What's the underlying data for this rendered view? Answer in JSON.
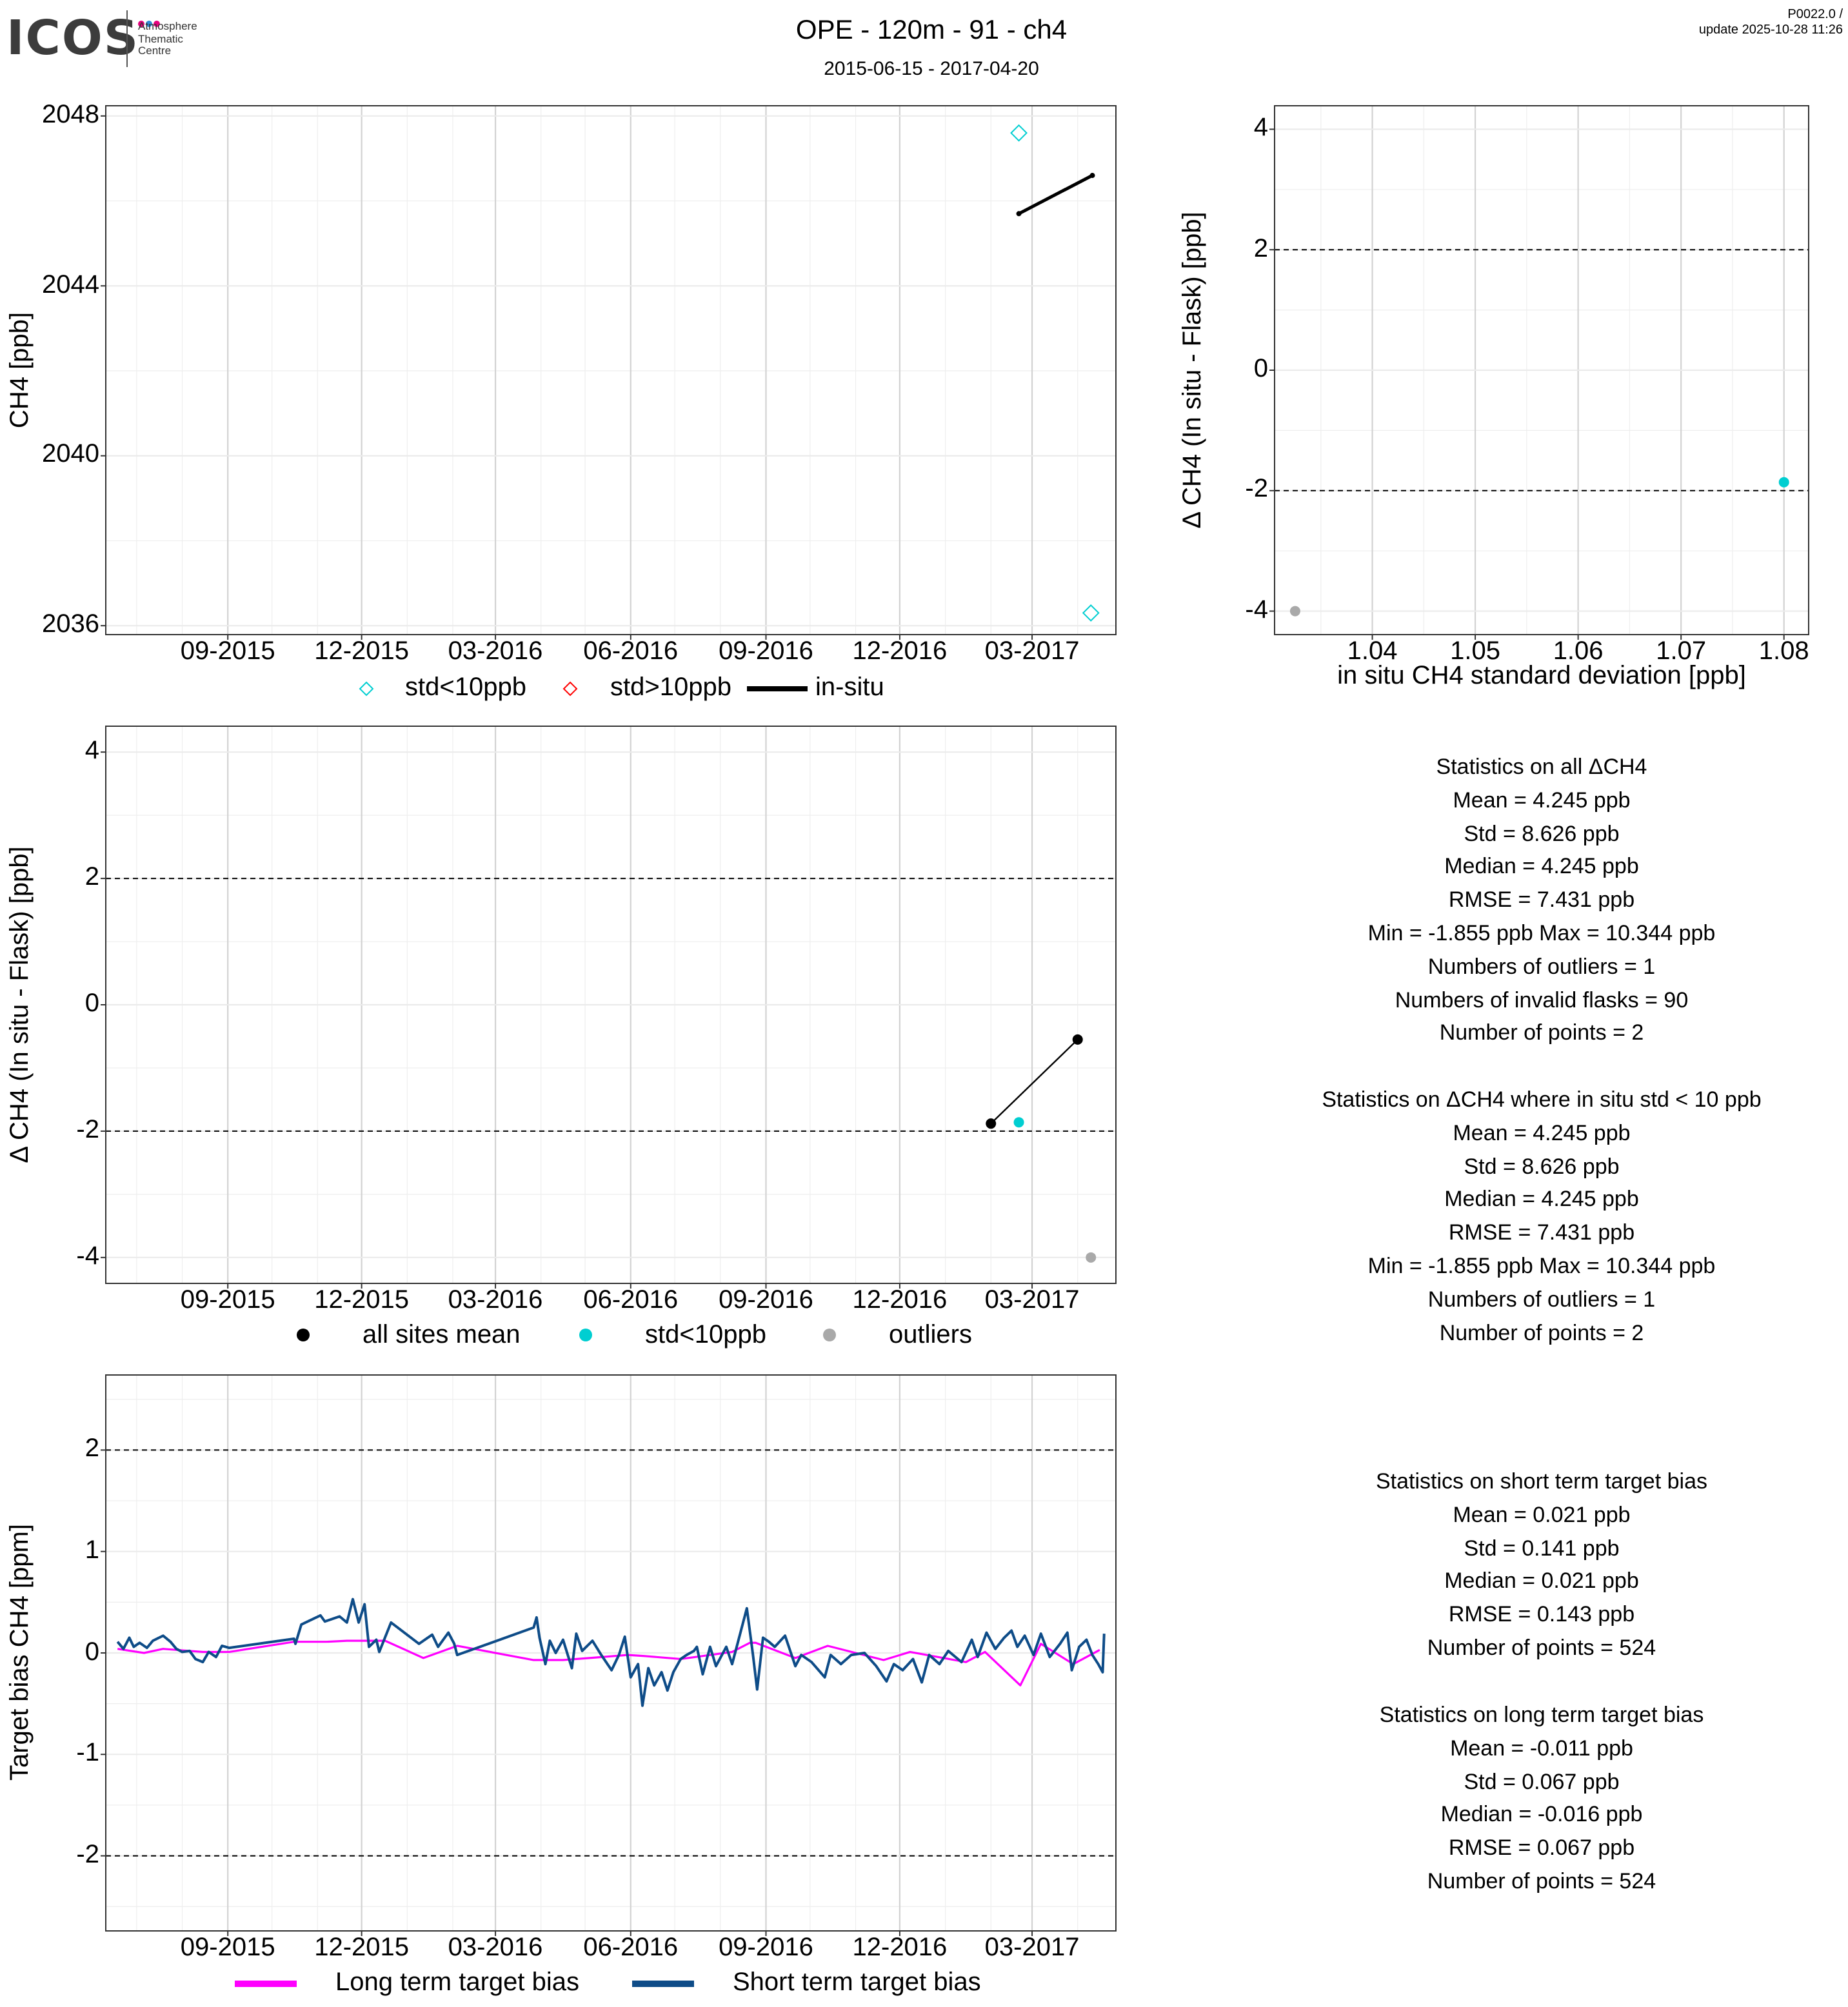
{
  "header": {
    "logo_text": "ICOS",
    "logo_sub": [
      "Atmosphere",
      "Thematic",
      "Centre"
    ],
    "title": "OPE - 120m - 91 - ch4",
    "date_range": "2015-06-15 - 2017-04-20",
    "version": "P0022.0 /",
    "update": "update  2025-10-28 11:26"
  },
  "colors": {
    "std_lt_10": "#00CED1",
    "std_gt_10": "#FF0000",
    "in_situ": "#000000",
    "outlier": "#A9A9A9",
    "long_term": "#FF00FF",
    "short_term": "#0E4C88",
    "logo_dots": [
      "#E6007E",
      "#2D8DD9",
      "#E6007E"
    ]
  },
  "legends": {
    "top": [
      "std<10ppb",
      "std>10ppb",
      "in-situ"
    ],
    "middle": [
      "all sites mean",
      "std<10ppb",
      "outliers"
    ],
    "bottom": [
      "Long term target bias",
      "Short term target bias"
    ]
  },
  "stats": [
    {
      "title": "Statistics on all ΔCH4",
      "lines": [
        "Mean =  4.245 ppb",
        "Std =  8.626 ppb",
        "Median =  4.245 ppb",
        "RMSE =  7.431 ppb",
        "Min =  -1.855 ppb Max =  10.344 ppb",
        "Numbers of outliers =  1",
        "Numbers of invalid flasks =  90",
        "Number of points =  2"
      ]
    },
    {
      "title": "Statistics on ΔCH4 where in situ std < 10 ppb",
      "lines": [
        "Mean =  4.245 ppb",
        "Std =  8.626 ppb",
        "Median =  4.245 ppb",
        "RMSE =  7.431 ppb",
        "Min =  -1.855 ppb Max =  10.344 ppb",
        "Numbers of outliers =  1",
        "Number of points =  2"
      ]
    },
    {
      "title": "Statistics on short term target bias",
      "lines": [
        "Mean =  0.021 ppb",
        "Std =  0.141 ppb",
        "Median =  0.021 ppb",
        "RMSE =  0.143 ppb",
        "Number of points =  524"
      ]
    },
    {
      "title": "Statistics on long term target bias",
      "lines": [
        "Mean =  -0.011 ppb",
        "Std =  0.067 ppb",
        "Median =  -0.016 ppb",
        "RMSE =  0.067 ppb",
        "Number of points =  524"
      ]
    }
  ],
  "chart_data": [
    {
      "id": "ch4-timeseries",
      "type": "scatter",
      "x_unit": "days since 2015-06-15",
      "ylabel": "CH4 [ppb]",
      "xlim": [
        -5,
        682
      ],
      "ylim": [
        2035.79,
        2048.24
      ],
      "xticks": [
        [
          78,
          "09-2015"
        ],
        [
          169,
          "12-2015"
        ],
        [
          260,
          "03-2016"
        ],
        [
          352,
          "06-2016"
        ],
        [
          444,
          "09-2016"
        ],
        [
          535,
          "12-2016"
        ],
        [
          625,
          "03-2017"
        ]
      ],
      "xminor": [
        16,
        47,
        108,
        139,
        200,
        231,
        291,
        321,
        382,
        413,
        474,
        505,
        566,
        597,
        656
      ],
      "yticks": [
        [
          2036,
          "2036"
        ],
        [
          2040,
          "2040"
        ],
        [
          2044,
          "2044"
        ],
        [
          2048,
          "2048"
        ]
      ],
      "yminor": [
        2038,
        2042,
        2046
      ],
      "dashed": [],
      "legend": "bottom",
      "series": [
        {
          "name": "std<10ppb",
          "kind": "diamond",
          "color": "#00CED1",
          "points": [
            [
              616,
              2047.6
            ],
            [
              665,
              2036.3
            ]
          ]
        },
        {
          "name": "std>10ppb",
          "kind": "diamond",
          "color": "#FF0000",
          "points": []
        },
        {
          "name": "in-situ",
          "kind": "line-dots",
          "color": "#000000",
          "points": [
            [
              616,
              2045.7
            ],
            [
              666,
              2046.6
            ]
          ]
        }
      ]
    },
    {
      "id": "delta-vs-std",
      "type": "scatter",
      "xlabel": "in situ CH4 standard deviation [ppb]",
      "ylabel": "Δ CH4 (In situ - Flask) [ppb]",
      "xlim": [
        1.0305,
        1.0824
      ],
      "ylim": [
        -4.39,
        4.39
      ],
      "xticks": [
        [
          1.04,
          "1.04"
        ],
        [
          1.05,
          "1.05"
        ],
        [
          1.06,
          "1.06"
        ],
        [
          1.07,
          "1.07"
        ],
        [
          1.08,
          "1.08"
        ]
      ],
      "xminor": [
        1.035,
        1.045,
        1.055,
        1.065,
        1.075
      ],
      "yticks": [
        [
          -4,
          "-4"
        ],
        [
          -2,
          "-2"
        ],
        [
          0,
          "0"
        ],
        [
          2,
          "2"
        ],
        [
          4,
          "4"
        ]
      ],
      "yminor": [
        -3,
        -1,
        1,
        3
      ],
      "dashed": [
        -2,
        2
      ],
      "series": [
        {
          "name": "std<10ppb",
          "kind": "dot",
          "color": "#00CED1",
          "points": [
            [
              1.08,
              -1.86
            ]
          ]
        },
        {
          "name": "outliers",
          "kind": "dot",
          "color": "#A9A9A9",
          "points": [
            [
              1.0325,
              -4.0
            ]
          ]
        }
      ]
    },
    {
      "id": "delta-timeseries",
      "type": "scatter",
      "x_unit": "days since 2015-06-15",
      "ylabel": "Δ CH4 (In situ - Flask) [ppb]",
      "xlim": [
        -5,
        682
      ],
      "ylim": [
        -4.41,
        4.41
      ],
      "xticks": [
        [
          78,
          "09-2015"
        ],
        [
          169,
          "12-2015"
        ],
        [
          260,
          "03-2016"
        ],
        [
          352,
          "06-2016"
        ],
        [
          444,
          "09-2016"
        ],
        [
          535,
          "12-2016"
        ],
        [
          625,
          "03-2017"
        ]
      ],
      "xminor": [
        16,
        47,
        108,
        139,
        200,
        231,
        291,
        321,
        382,
        413,
        474,
        505,
        566,
        597,
        656
      ],
      "yticks": [
        [
          -4,
          "-4"
        ],
        [
          -2,
          "-2"
        ],
        [
          0,
          "0"
        ],
        [
          2,
          "2"
        ],
        [
          4,
          "4"
        ]
      ],
      "yminor": [
        -3,
        -1,
        1,
        3
      ],
      "dashed": [
        -2,
        2
      ],
      "legend": "bottom",
      "series": [
        {
          "name": "all sites mean",
          "kind": "line-bigdots",
          "color": "#000000",
          "points": [
            [
              597,
              -1.88
            ],
            [
              656,
              -0.55
            ]
          ]
        },
        {
          "name": "std<10ppb",
          "kind": "dot",
          "color": "#00CED1",
          "points": [
            [
              616,
              -1.86
            ]
          ]
        },
        {
          "name": "outliers",
          "kind": "dot",
          "color": "#A9A9A9",
          "points": [
            [
              665,
              -4.0
            ]
          ]
        }
      ]
    },
    {
      "id": "target-bias",
      "type": "line",
      "x_unit": "days since 2015-06-15",
      "ylabel": "Target bias CH4 [ppm]",
      "xlim": [
        -5,
        682
      ],
      "ylim": [
        -2.74,
        2.74
      ],
      "xticks": [
        [
          78,
          "09-2015"
        ],
        [
          169,
          "12-2015"
        ],
        [
          260,
          "03-2016"
        ],
        [
          352,
          "06-2016"
        ],
        [
          444,
          "09-2016"
        ],
        [
          535,
          "12-2016"
        ],
        [
          625,
          "03-2017"
        ]
      ],
      "xminor": [
        16,
        47,
        108,
        139,
        200,
        231,
        291,
        321,
        382,
        413,
        474,
        505,
        566,
        597,
        656
      ],
      "yticks": [
        [
          -2,
          "-2"
        ],
        [
          -1,
          "-1"
        ],
        [
          0,
          "0"
        ],
        [
          1,
          "1"
        ],
        [
          2,
          "2"
        ]
      ],
      "yminor": [
        -2.5,
        -1.5,
        -0.5,
        0.5,
        1.5,
        2.5
      ],
      "dashed": [
        -2,
        2
      ],
      "legend": "bottom",
      "series": [
        {
          "name": "Long term target bias",
          "kind": "line",
          "color": "#FF00FF",
          "width": 1.6,
          "points": [
            [
              3,
              0.04
            ],
            [
              21,
              0.0
            ],
            [
              34,
              0.04
            ],
            [
              61,
              0.01
            ],
            [
              79,
              0.01
            ],
            [
              123,
              0.11
            ],
            [
              145,
              0.11
            ],
            [
              159,
              0.12
            ],
            [
              185,
              0.12
            ],
            [
              211,
              -0.05
            ],
            [
              234,
              0.07
            ],
            [
              286,
              -0.07
            ],
            [
              306,
              -0.07
            ],
            [
              324,
              -0.05
            ],
            [
              350,
              -0.02
            ],
            [
              361,
              -0.03
            ],
            [
              386,
              -0.06
            ],
            [
              421,
              0.01
            ],
            [
              433,
              0.1
            ],
            [
              437,
              0.1
            ],
            [
              464,
              -0.05
            ],
            [
              486,
              0.07
            ],
            [
              524,
              -0.07
            ],
            [
              542,
              0.01
            ],
            [
              580,
              -0.09
            ],
            [
              593,
              0.01
            ],
            [
              617,
              -0.32
            ],
            [
              631,
              0.09
            ],
            [
              653,
              -0.11
            ],
            [
              671,
              0.03
            ]
          ]
        },
        {
          "name": "Short term target bias",
          "kind": "line",
          "color": "#0E4C88",
          "width": 2,
          "points": [
            [
              3,
              0.11
            ],
            [
              7,
              0.04
            ],
            [
              11,
              0.15
            ],
            [
              14,
              0.06
            ],
            [
              18,
              0.1
            ],
            [
              23,
              0.05
            ],
            [
              27,
              0.12
            ],
            [
              34,
              0.17
            ],
            [
              39,
              0.11
            ],
            [
              43,
              0.04
            ],
            [
              47,
              0.01
            ],
            [
              52,
              0.02
            ],
            [
              56,
              -0.06
            ],
            [
              61,
              -0.09
            ],
            [
              65,
              0.01
            ],
            [
              70,
              -0.04
            ],
            [
              74,
              0.07
            ],
            [
              79,
              0.05
            ],
            [
              123,
              0.14
            ],
            [
              124,
              0.09
            ],
            [
              128,
              0.28
            ],
            [
              141,
              0.37
            ],
            [
              144,
              0.31
            ],
            [
              154,
              0.36
            ],
            [
              159,
              0.3
            ],
            [
              163,
              0.53
            ],
            [
              167,
              0.3
            ],
            [
              171,
              0.48
            ],
            [
              174,
              0.06
            ],
            [
              179,
              0.13
            ],
            [
              181,
              0.01
            ],
            [
              189,
              0.3
            ],
            [
              208,
              0.09
            ],
            [
              217,
              0.18
            ],
            [
              221,
              0.06
            ],
            [
              228,
              0.2
            ],
            [
              232,
              0.09
            ],
            [
              234,
              -0.02
            ],
            [
              286,
              0.25
            ],
            [
              288,
              0.35
            ],
            [
              290,
              0.15
            ],
            [
              294,
              -0.11
            ],
            [
              297,
              0.12
            ],
            [
              301,
              0.0
            ],
            [
              306,
              0.13
            ],
            [
              312,
              -0.15
            ],
            [
              315,
              0.19
            ],
            [
              319,
              0.02
            ],
            [
              326,
              0.12
            ],
            [
              332,
              -0.02
            ],
            [
              339,
              -0.17
            ],
            [
              344,
              -0.02
            ],
            [
              348,
              0.16
            ],
            [
              352,
              -0.24
            ],
            [
              357,
              -0.11
            ],
            [
              360,
              -0.52
            ],
            [
              364,
              -0.15
            ],
            [
              368,
              -0.32
            ],
            [
              373,
              -0.19
            ],
            [
              377,
              -0.37
            ],
            [
              381,
              -0.19
            ],
            [
              386,
              -0.06
            ],
            [
              390,
              -0.02
            ],
            [
              395,
              0.02
            ],
            [
              397,
              0.06
            ],
            [
              401,
              -0.21
            ],
            [
              406,
              0.06
            ],
            [
              410,
              -0.13
            ],
            [
              417,
              0.06
            ],
            [
              421,
              -0.11
            ],
            [
              431,
              0.44
            ],
            [
              435,
              0.0
            ],
            [
              438,
              -0.36
            ],
            [
              442,
              0.15
            ],
            [
              446,
              0.11
            ],
            [
              450,
              0.06
            ],
            [
              457,
              0.17
            ],
            [
              464,
              -0.13
            ],
            [
              468,
              -0.02
            ],
            [
              475,
              -0.09
            ],
            [
              484,
              -0.24
            ],
            [
              488,
              -0.02
            ],
            [
              495,
              -0.11
            ],
            [
              502,
              -0.02
            ],
            [
              511,
              0.0
            ],
            [
              519,
              -0.13
            ],
            [
              526,
              -0.28
            ],
            [
              531,
              -0.11
            ],
            [
              537,
              -0.17
            ],
            [
              544,
              -0.06
            ],
            [
              550,
              -0.29
            ],
            [
              555,
              -0.02
            ],
            [
              562,
              -0.11
            ],
            [
              568,
              0.02
            ],
            [
              577,
              -0.09
            ],
            [
              584,
              0.13
            ],
            [
              588,
              -0.04
            ],
            [
              594,
              0.2
            ],
            [
              600,
              0.04
            ],
            [
              606,
              0.15
            ],
            [
              611,
              0.22
            ],
            [
              615,
              0.06
            ],
            [
              620,
              0.17
            ],
            [
              626,
              -0.02
            ],
            [
              631,
              0.19
            ],
            [
              637,
              -0.04
            ],
            [
              644,
              0.09
            ],
            [
              649,
              0.2
            ],
            [
              652,
              -0.17
            ],
            [
              657,
              0.06
            ],
            [
              662,
              0.13
            ],
            [
              666,
              -0.02
            ],
            [
              670,
              -0.11
            ],
            [
              673,
              -0.19
            ],
            [
              674,
              0.19
            ]
          ]
        }
      ]
    }
  ]
}
